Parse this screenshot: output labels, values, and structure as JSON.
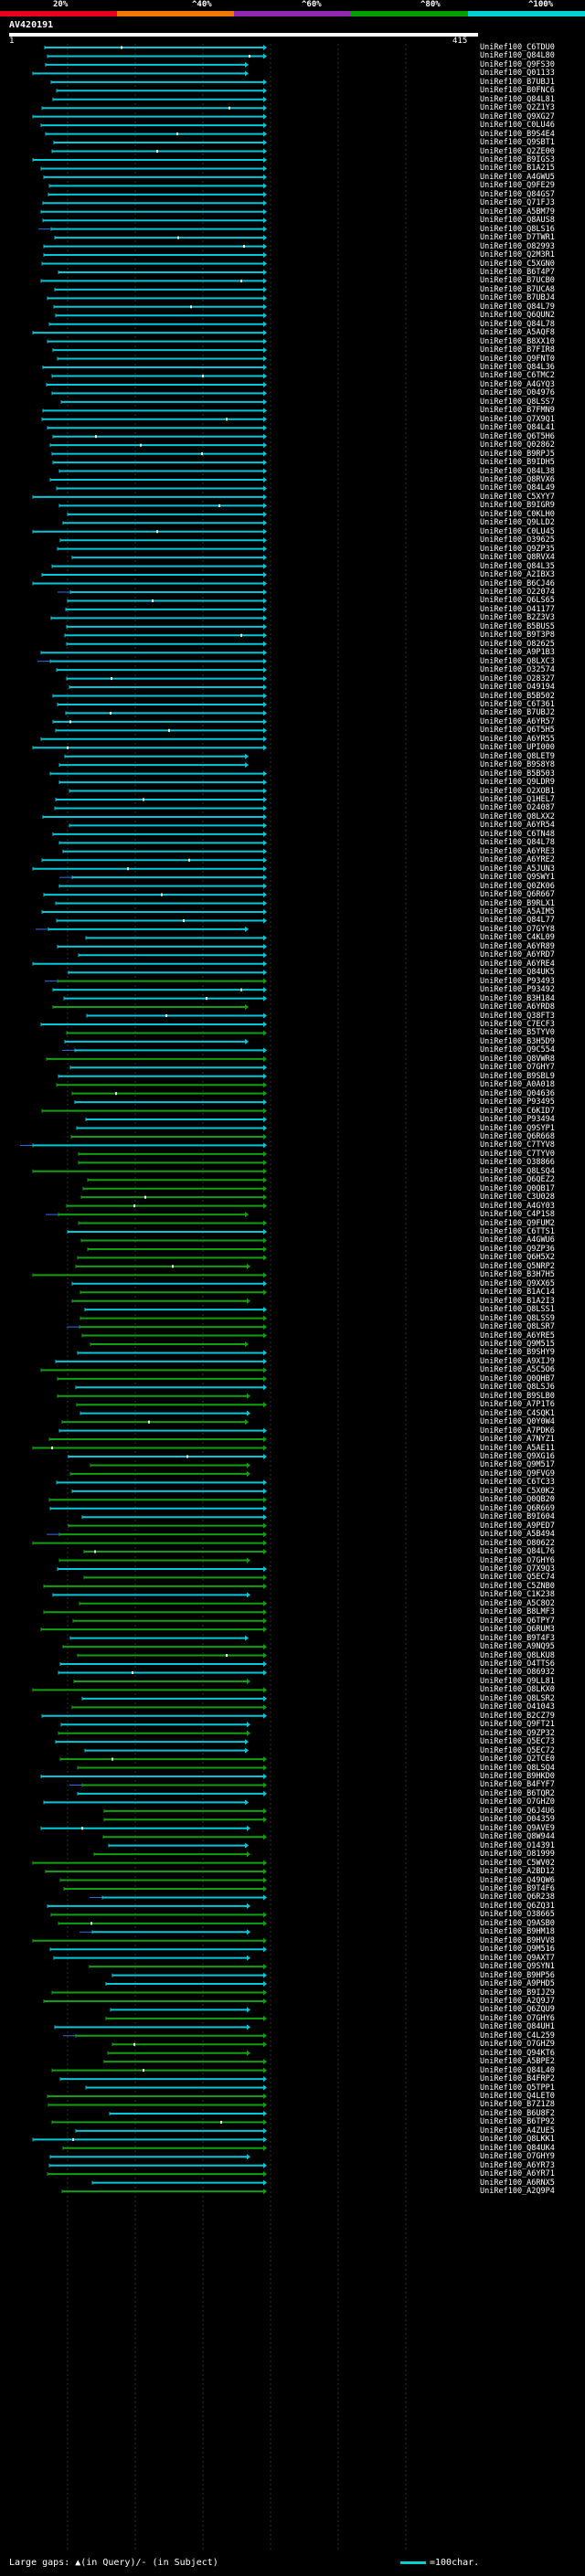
{
  "scale": {
    "labels": [
      "20%",
      "^40%",
      "^60%",
      "^80%",
      "^100%"
    ],
    "colors": [
      "#e8001c",
      "#f07800",
      "#9028b0",
      "#00a000",
      "#00d0d0"
    ]
  },
  "query": {
    "title": "AV420191",
    "start": "1",
    "end": "415"
  },
  "footer": {
    "text": "Large gaps: ▲(in Query)/- (in Subject)",
    "legend": "=100char."
  },
  "hits": [
    "UniRef100_C6TDU0",
    "UniRef100_Q84L80",
    "UniRef100_Q9FS30",
    "UniRef100_Q01133",
    "UniRef100_B7UBJ1",
    "UniRef100_B0FNC6",
    "UniRef100_Q84L81",
    "UniRef100_Q2Z1Y3",
    "UniRef100_Q9XG27",
    "UniRef100_C0LU46",
    "UniRef100_B9S4E4",
    "UniRef100_Q9SBT1",
    "UniRef100_Q2ZE00",
    "UniRef100_B9IGS3",
    "UniRef100_B1A215",
    "UniRef100_A4GWU5",
    "UniRef100_Q9FE29",
    "UniRef100_Q84GS7",
    "UniRef100_Q71FJ3",
    "UniRef100_A5BM79",
    "UniRef100_Q8AUS8",
    "UniRef100_Q8LS16",
    "UniRef100_D7TWR1",
    "UniRef100_O82993",
    "UniRef100_Q2M3R1",
    "UniRef100_C5XGN0",
    "UniRef100_B6T4P7",
    "UniRef100_B7UCB0",
    "UniRef100_B7UCA8",
    "UniRef100_B7UBJ4",
    "UniRef100_Q84L79",
    "UniRef100_Q6QUN2",
    "UniRef100_Q84L78",
    "UniRef100_A5AQF8",
    "UniRef100_B8XX10",
    "UniRef100_B7FIR8",
    "UniRef100_Q9FNT0",
    "UniRef100_Q84L36",
    "UniRef100_C6TMC2",
    "UniRef100_A4GYQ3",
    "UniRef100_O04976",
    "UniRef100_Q8LSS7",
    "UniRef100_B7FMN9",
    "UniRef100_Q7X9Q1",
    "UniRef100_Q84L41",
    "UniRef100_Q6T5H6",
    "UniRef100_Q02862",
    "UniRef100_B9RPJ5",
    "UniRef100_B9IDH5",
    "UniRef100_Q84L38",
    "UniRef100_Q8RVX6",
    "UniRef100_Q84L49",
    "UniRef100_C5XYY7",
    "UniRef100_B9IGR9",
    "UniRef100_C0KLH0",
    "UniRef100_Q9LLD2",
    "UniRef100_C0LU45",
    "UniRef100_O39625",
    "UniRef100_Q9ZP35",
    "UniRef100_Q8RVX4",
    "UniRef100_Q84L35",
    "UniRef100_A2IBX3",
    "UniRef100_B6CJ46",
    "UniRef100_O22074",
    "UniRef100_Q6LS65",
    "UniRef100_O41177",
    "UniRef100_B2Z3V3",
    "UniRef100_B5BUS5",
    "UniRef100_B9T3P8",
    "UniRef100_O82625",
    "UniRef100_A9P1B3",
    "UniRef100_Q8LXC3",
    "UniRef100_O32574",
    "UniRef100_O28327",
    "UniRef100_O49194",
    "UniRef100_B5B502",
    "UniRef100_C6T361",
    "UniRef100_B7UBJ2",
    "UniRef100_A6YR57",
    "UniRef100_Q6T5H5",
    "UniRef100_A6YR55",
    "UniRef100_UPI000",
    "UniRef100_Q8LET9",
    "UniRef100_B9S8Y8",
    "UniRef100_B5B503",
    "UniRef100_Q9LDR9",
    "UniRef100_O2XOB1",
    "UniRef100_Q1HEL7",
    "UniRef100_O24087",
    "UniRef100_Q8LXX2",
    "UniRef100_A6YR54",
    "UniRef100_C6TN48",
    "UniRef100_Q84L78",
    "UniRef100_A6YRE3",
    "UniRef100_A6YRE2",
    "UniRef100_A5JUN3",
    "UniRef100_Q9SWY1",
    "UniRef100_Q0ZK06",
    "UniRef100_Q6R667",
    "UniRef100_B9RLX1",
    "UniRef100_A5AIM5",
    "UniRef100_Q84L77",
    "UniRef100_O7GYY8",
    "UniRef100_C4KL09",
    "UniRef100_A6YR89",
    "UniRef100_A6YRD7",
    "UniRef100_A6YRE4",
    "UniRef100_Q84UK5",
    "UniRef100_P93493",
    "UniRef100_P93492",
    "UniRef100_B3H184",
    "UniRef100_A6YRD8",
    "UniRef100_Q38FT3",
    "UniRef100_C7ECF3",
    "UniRef100_B5TYV0",
    "UniRef100_B3H5D9",
    "UniRef100_Q9C554",
    "UniRef100_Q8VWR8",
    "UniRef100_O7GHY7",
    "UniRef100_B9SBL9",
    "UniRef100_A0A018",
    "UniRef100_Q04636",
    "UniRef100_P93495",
    "UniRef100_C6KID7",
    "UniRef100_P93494",
    "UniRef100_Q9SYP1",
    "UniRef100_Q6R668",
    "UniRef100_C7TYV8",
    "UniRef100_C7TYV0",
    "UniRef100_O38866",
    "UniRef100_Q8LSQ4",
    "UniRef100_Q6QEZ2",
    "UniRef100_Q0QB17",
    "UniRef100_C3U028",
    "UniRef100_A4GY03",
    "UniRef100_C4P1S8",
    "UniRef100_Q9FUM2",
    "UniRef100_C6TTS1",
    "UniRef100_A4GWU6",
    "UniRef100_Q9ZP36",
    "UniRef100_Q6H5X2",
    "UniRef100_Q5NRP2",
    "UniRef100_B3H7H5",
    "UniRef100_Q9XX65",
    "UniRef100_B1AC14",
    "UniRef100_B1A2I3",
    "UniRef100_Q8LSS1",
    "UniRef100_Q8LSS9",
    "UniRef100_Q8LSR7",
    "UniRef100_A6YRE5",
    "UniRef100_Q9M515",
    "UniRef100_B9SHY9",
    "UniRef100_A9XIJ9",
    "UniRef100_A5C5O6",
    "UniRef100_Q0QHB7",
    "UniRef100_Q8LSJ6",
    "UniRef100_B9SLB0",
    "UniRef100_A7P1T6",
    "UniRef100_C4SQK1",
    "UniRef100_Q0Y0W4",
    "UniRef100_A7PDK6",
    "UniRef100_A7NYZ1",
    "UniRef100_A5AE11",
    "UniRef100_Q9XG16",
    "UniRef100_Q9M517",
    "UniRef100_Q9FVG9",
    "UniRef100_C6TC33",
    "UniRef100_C5X0K2",
    "UniRef100_Q0QB20",
    "UniRef100_Q6R669",
    "UniRef100_B9I604",
    "UniRef100_A9PED7",
    "UniRef100_A5B494",
    "UniRef100_O80622",
    "UniRef100_Q84L76",
    "UniRef100_O7GHY6",
    "UniRef100_Q7X9Q3",
    "UniRef100_Q5EC74",
    "UniRef100_C5ZNB0",
    "UniRef100_C1K238",
    "UniRef100_A5C8O2",
    "UniRef100_B8LMF3",
    "UniRef100_Q6TPY7",
    "UniRef100_Q6RUM3",
    "UniRef100_B9T4F3",
    "UniRef100_A9NQ95",
    "UniRef100_Q8LKU8",
    "UniRef100_O4TTS6",
    "UniRef100_O86932",
    "UniRef100_Q9LL81",
    "UniRef100_Q8LKX0",
    "UniRef100_Q8LSR2",
    "UniRef100_O41043",
    "UniRef100_B2CZ79",
    "UniRef100_Q9FT21",
    "UniRef100_Q9ZP32",
    "UniRef100_Q5EC73",
    "UniRef100_Q5EC72",
    "UniRef100_Q2TCE0",
    "UniRef100_Q8LSQ4",
    "UniRef100_B9HKD0",
    "UniRef100_B4FYF7",
    "UniRef100_B6TQR2",
    "UniRef100_O7GHZ0",
    "UniRef100_Q6J4U6",
    "UniRef100_O04359",
    "UniRef100_Q9AVE9",
    "UniRef100_Q8W944",
    "UniRef100_O14391",
    "UniRef100_O81999",
    "UniRef100_C5WV02",
    "UniRef100_A2BD12",
    "UniRef100_Q49QW6",
    "UniRef100_B9T4F6",
    "UniRef100_Q6R238",
    "UniRef100_Q6ZQ31",
    "UniRef100_O38665",
    "UniRef100_Q9ASB0",
    "UniRef100_B9HM18",
    "UniRef100_B9HVV8",
    "UniRef100_Q9M516",
    "UniRef100_Q9AXT7",
    "UniRef100_Q9SYN1",
    "UniRef100_B9HP56",
    "UniRef100_A9PHD5",
    "UniRef100_B9IJZ9",
    "UniRef100_A2Q9J7",
    "UniRef100_Q6ZQU9",
    "UniRef100_O7GHY6",
    "UniRef100_Q84UH1",
    "UniRef100_C4L259",
    "UniRef100_O7GHZ9",
    "UniRef100_Q94KT6",
    "UniRef100_A5BPE2",
    "UniRef100_Q84L40",
    "UniRef100_B4FRP2",
    "UniRef100_Q5TPP1",
    "UniRef100_Q4LET0",
    "UniRef100_B7Z1Z8",
    "UniRef100_B6U8F2",
    "UniRef100_B6TP92",
    "UniRef100_A4ZUE5",
    "UniRef100_Q8LKK1",
    "UniRef100_Q84UK4",
    "UniRef100_O7GHY9",
    "UniRef100_A6YR73",
    "UniRef100_A6YR71",
    "UniRef100_A6RNX5",
    "UniRef100_A2Q9P4"
  ]
}
